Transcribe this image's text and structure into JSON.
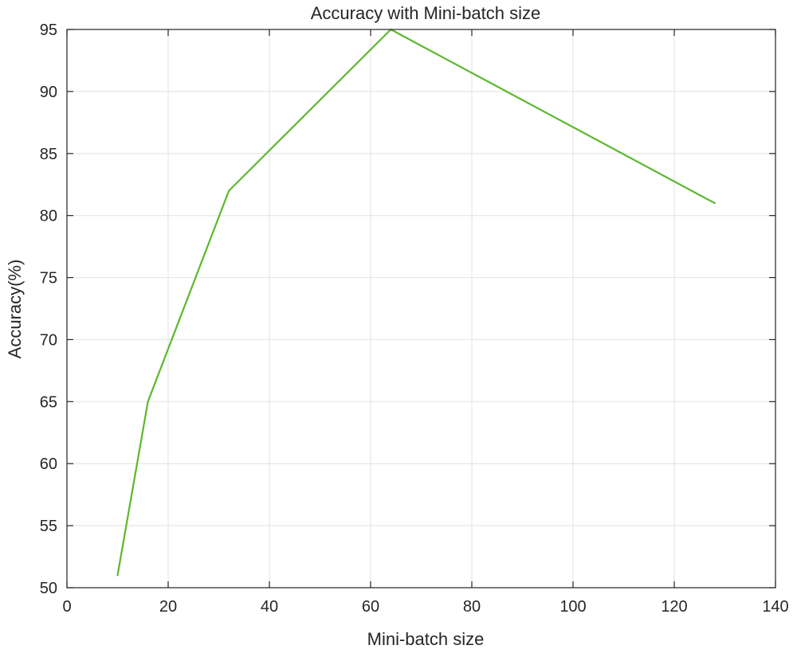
{
  "chart_data": {
    "type": "line",
    "title": "Accuracy with Mini-batch size",
    "xlabel": "Mini-batch size",
    "ylabel": "Accuracy(%)",
    "xlim": [
      0,
      140
    ],
    "ylim": [
      50,
      95
    ],
    "xticks": [
      0,
      20,
      40,
      60,
      80,
      100,
      120,
      140
    ],
    "yticks": [
      50,
      55,
      60,
      65,
      70,
      75,
      80,
      85,
      90,
      95
    ],
    "grid": true,
    "series": [
      {
        "color": "#5cb82e",
        "x": [
          10,
          16,
          32,
          64,
          128
        ],
        "y": [
          51,
          65,
          82,
          95,
          81
        ]
      }
    ]
  }
}
